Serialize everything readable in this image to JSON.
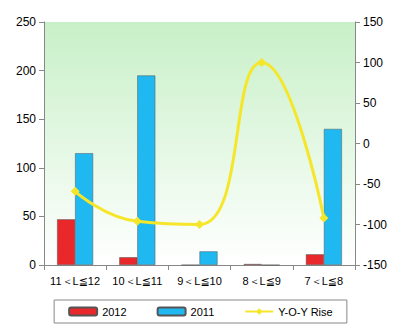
{
  "chart_data": {
    "type": "bar",
    "categories": [
      "11＜L≦12",
      "10＜L≦11",
      "9＜L≦10",
      "8＜L≦9",
      "7＜L≦8"
    ],
    "series": [
      {
        "name": "2012",
        "type": "bar",
        "color": "#e8282a",
        "values": [
          47,
          8,
          0,
          1,
          11
        ]
      },
      {
        "name": "2011",
        "type": "bar",
        "color": "#1fb8f0",
        "values": [
          115,
          195,
          14,
          0,
          140
        ]
      },
      {
        "name": "Y-O-Y Rise",
        "type": "line",
        "axis": "y2",
        "color": "#f5e62a",
        "marker": "diamond",
        "line_style": "smooth",
        "values": [
          -59,
          -96,
          -100,
          100,
          -92
        ]
      }
    ],
    "ylim": [
      0,
      250
    ],
    "yticks": [
      0,
      50,
      100,
      150,
      200,
      250
    ],
    "y2lim": [
      -150,
      150
    ],
    "y2ticks": [
      -150,
      -100,
      -50,
      0,
      50,
      100,
      150
    ],
    "grid": false,
    "legend": "bottom"
  }
}
